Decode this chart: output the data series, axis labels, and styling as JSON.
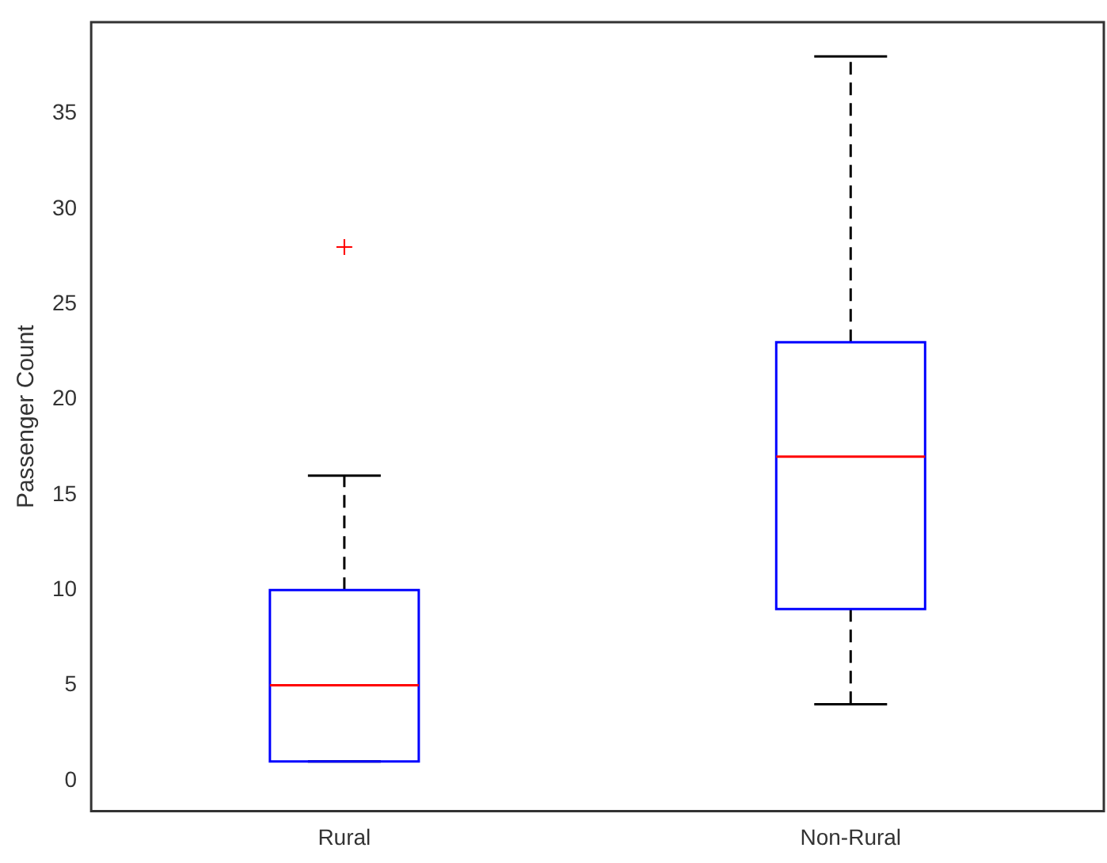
{
  "chart_data": {
    "type": "box",
    "ylabel": "Passenger Count",
    "categories": [
      "Rural",
      "Non-Rural"
    ],
    "boxes": [
      {
        "low": 1,
        "q1": 1,
        "median": 5,
        "q3": 10,
        "high": 16,
        "outliers": [
          28
        ]
      },
      {
        "low": 4,
        "q1": 9,
        "median": 17,
        "q3": 23,
        "high": 38
      }
    ],
    "color": "#0000ff",
    "ylim": [
      -1.6,
      39.8
    ],
    "yticks": [
      0,
      5,
      10,
      15,
      20,
      25,
      30,
      35
    ],
    "grid": false,
    "legend": false,
    "marker": "cross"
  }
}
